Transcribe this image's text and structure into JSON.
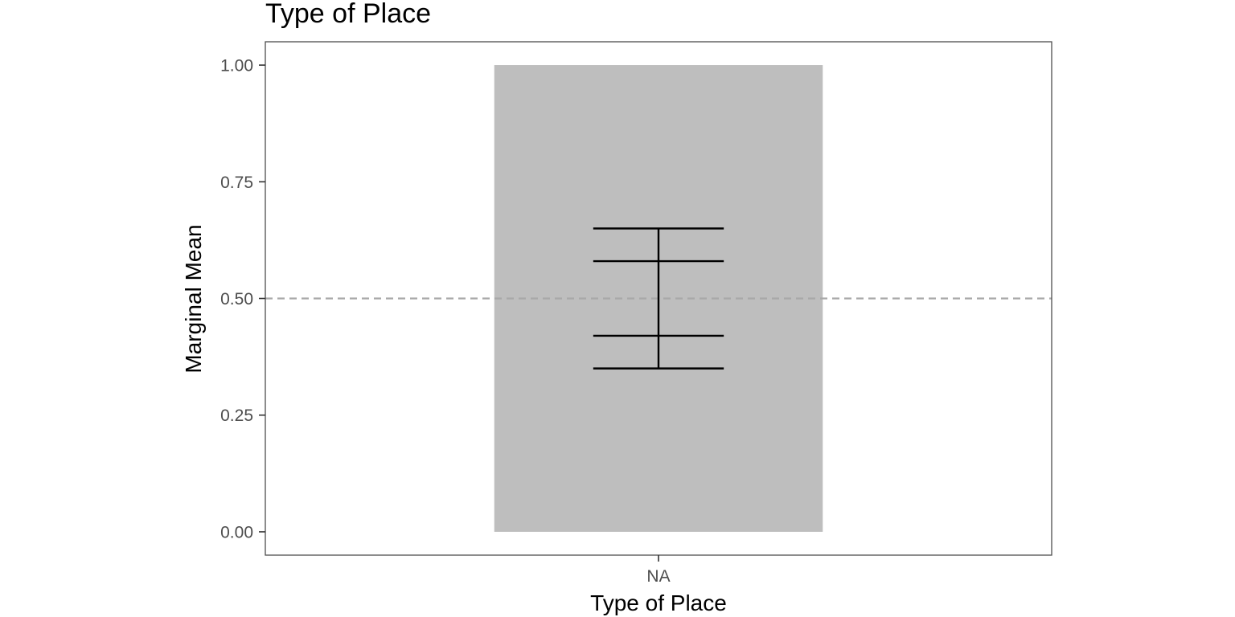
{
  "chart_data": {
    "type": "bar",
    "title": "Type of Place",
    "xlabel": "Type of Place",
    "ylabel": "Marginal Mean",
    "categories": [
      "NA"
    ],
    "values": [
      1.0
    ],
    "ylim": [
      -0.05,
      1.05
    ],
    "yticks": [
      0.0,
      0.25,
      0.5,
      0.75,
      1.0
    ],
    "ytick_labels": [
      "0.00",
      "0.25",
      "0.50",
      "0.75",
      "1.00"
    ],
    "reference_line": 0.5,
    "intervals": [
      {
        "category": "NA",
        "lower_outer": 0.35,
        "lower_inner": 0.42,
        "upper_inner": 0.58,
        "upper_outer": 0.65
      }
    ],
    "grid": false,
    "legend": "none",
    "colors": {
      "bar": "#bebebe",
      "interval": "#000000",
      "reference_line": "#a9a9a9",
      "panel_border": "#4d4d4d",
      "tick_text": "#4d4d4d"
    }
  }
}
